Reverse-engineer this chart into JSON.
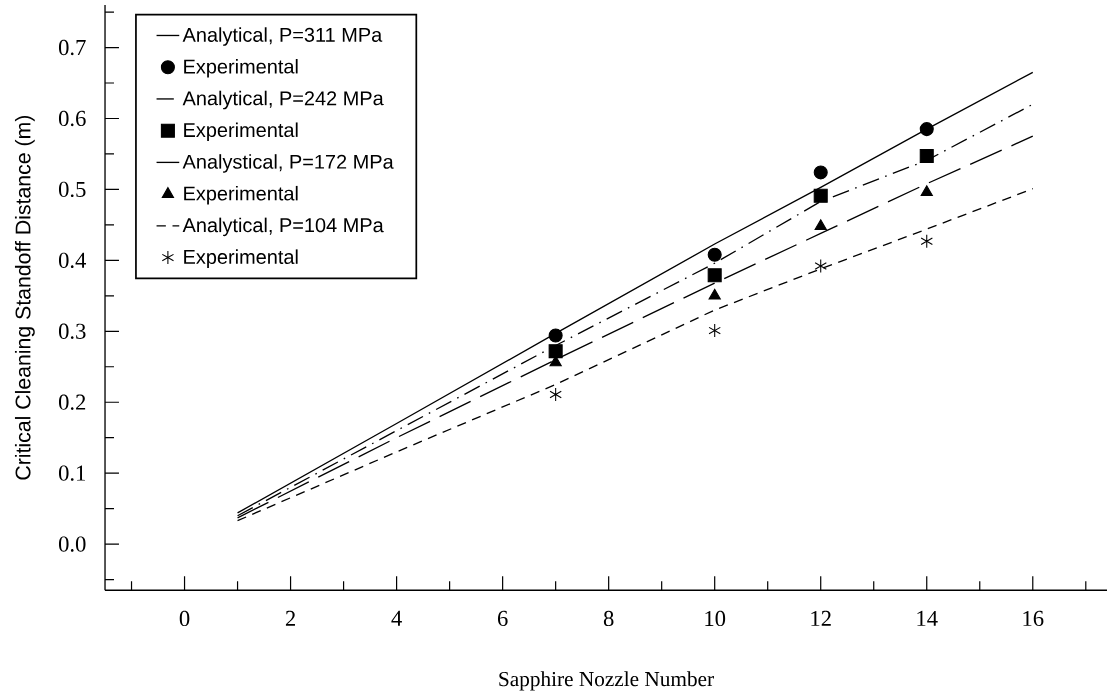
{
  "chart_data": {
    "type": "line",
    "xlabel": "Sapphire Nozzle Number",
    "ylabel": "Critical Cleaning Standoff Distance (m)",
    "xlim": [
      -1.5,
      17.4
    ],
    "ylim": [
      -0.065,
      0.76
    ],
    "xticks": [
      {
        "value": -1,
        "label": null
      },
      0,
      {
        "value": 1,
        "label": null
      },
      2,
      {
        "value": 3,
        "label": null
      },
      4,
      {
        "value": 5,
        "label": null
      },
      6,
      {
        "value": 7,
        "label": null
      },
      8,
      {
        "value": 9,
        "label": null
      },
      10,
      {
        "value": 11,
        "label": null
      },
      12,
      {
        "value": 13,
        "label": null
      },
      14,
      {
        "value": 15,
        "label": null
      },
      16,
      {
        "value": 17,
        "label": null
      }
    ],
    "yticks": [
      {
        "value": -0.05,
        "label": null
      },
      {
        "value": 0,
        "label": "0.0"
      },
      {
        "value": 0.05,
        "label": null
      },
      0.1,
      {
        "value": 0.15,
        "label": null
      },
      0.2,
      {
        "value": 0.25,
        "label": null
      },
      0.3,
      {
        "value": 0.35,
        "label": null
      },
      0.4,
      {
        "value": 0.45,
        "label": null
      },
      0.5,
      {
        "value": 0.55,
        "label": null
      },
      0.6,
      {
        "value": 0.65,
        "label": null
      },
      0.7,
      {
        "value": 0.75,
        "label": null
      }
    ],
    "legend": "top left",
    "series": [
      {
        "name": "Analytical, P=311 MPa",
        "line_style": "solid",
        "color": "#000000",
        "x": [
          1,
          4,
          7,
          10,
          12,
          14,
          16
        ],
        "values": [
          0.044,
          0.17,
          0.297,
          0.423,
          0.503,
          0.585,
          0.665
        ]
      },
      {
        "name": "Experimental",
        "type": "scatter",
        "marker": "circle",
        "color": "#000000",
        "x": [
          7,
          10,
          12,
          14
        ],
        "values": [
          0.294,
          0.408,
          0.524,
          0.585
        ]
      },
      {
        "name": "Analytical, P=242 MPa",
        "line_style": "dashdot",
        "color": "#000000",
        "x": [
          1,
          4,
          7,
          10,
          12,
          14,
          16
        ],
        "values": [
          0.04,
          0.16,
          0.28,
          0.396,
          0.483,
          0.541,
          0.62
        ]
      },
      {
        "name": "Experimental",
        "type": "scatter",
        "marker": "square",
        "color": "#000000",
        "x": [
          7,
          10,
          12,
          14
        ],
        "values": [
          0.272,
          0.379,
          0.491,
          0.547
        ]
      },
      {
        "name": "Analystical, P=172 MPa",
        "line_style": "longdashed",
        "color": "#000000",
        "x": [
          1,
          4,
          7,
          10,
          12,
          14,
          16
        ],
        "values": [
          0.037,
          0.15,
          0.26,
          0.368,
          0.438,
          0.508,
          0.575
        ]
      },
      {
        "name": "Experimental",
        "type": "scatter",
        "marker": "triangle",
        "color": "#000000",
        "x": [
          7,
          10,
          12,
          14
        ],
        "values": [
          0.256,
          0.35,
          0.448,
          0.496
        ]
      },
      {
        "name": "Analytical, P=104 MPa",
        "line_style": "dashed",
        "color": "#000000",
        "x": [
          1,
          4,
          7,
          10,
          12,
          14,
          16
        ],
        "values": [
          0.033,
          0.13,
          0.225,
          0.33,
          0.388,
          0.444,
          0.501
        ]
      },
      {
        "name": "Experimental",
        "type": "scatter",
        "marker": "cross",
        "color": "#000000",
        "x": [
          7,
          10,
          12,
          14
        ],
        "values": [
          0.211,
          0.301,
          0.392,
          0.427
        ]
      }
    ]
  }
}
